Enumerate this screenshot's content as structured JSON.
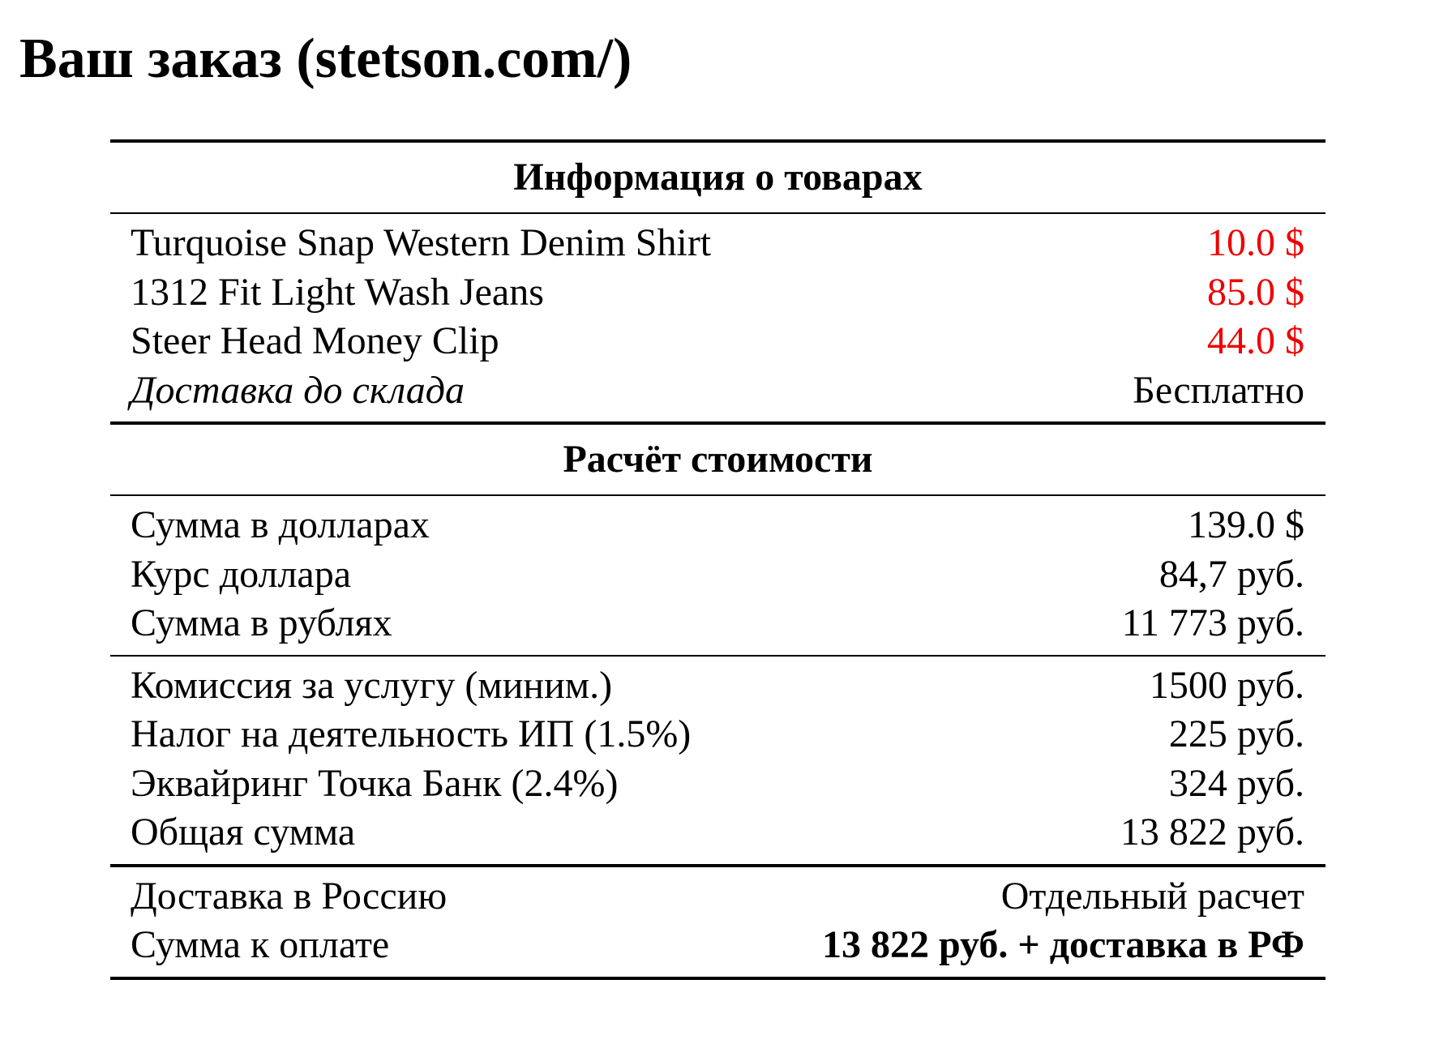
{
  "title": "Ваш заказ (stetson.com/)",
  "products_section": {
    "heading": "Информация о товарах",
    "items": [
      {
        "name": "Turquoise Snap Western Denim Shirt",
        "price": "10.0 $"
      },
      {
        "name": "1312 Fit Light Wash Jeans",
        "price": "85.0 $"
      },
      {
        "name": "Steer Head Money Clip",
        "price": "44.0 $"
      }
    ],
    "shipping_label": "Доставка до склада",
    "shipping_value": "Бесплатно"
  },
  "cost_section": {
    "heading": "Расчёт стоимости",
    "conversion": [
      {
        "label": "Сумма в долларах",
        "value": "139.0 $"
      },
      {
        "label": "Курс доллара",
        "value": "84,7 руб."
      },
      {
        "label": "Сумма в рублях",
        "value": "11 773 руб."
      }
    ],
    "fees": [
      {
        "label": "Комиссия за услугу (миним.)",
        "value": "1500 руб."
      },
      {
        "label": "Налог на деятельность ИП (1.5%)",
        "value": "225 руб."
      },
      {
        "label": "Эквайринг Точка Банк (2.4%)",
        "value": "324 руб."
      },
      {
        "label": "Общая сумма",
        "value": "13 822 руб."
      }
    ],
    "final": [
      {
        "label": "Доставка в Россию",
        "value": "Отдельный расчет"
      },
      {
        "label": "Сумма к оплате",
        "value": "13 822 руб. + доставка в РФ"
      }
    ]
  },
  "colors": {
    "price": "#ee0000"
  }
}
